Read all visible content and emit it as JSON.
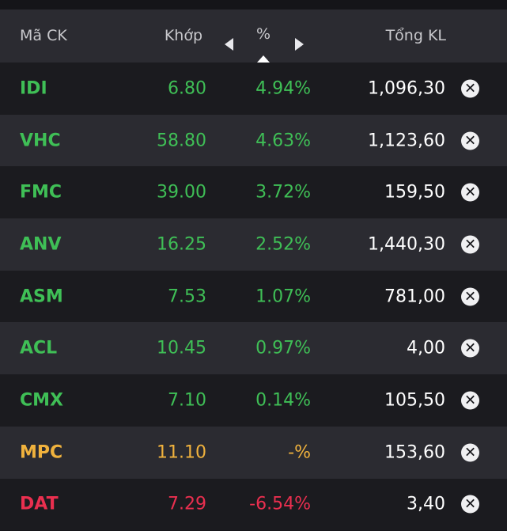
{
  "header": {
    "symbol": "Mã CK",
    "price": "Khớp",
    "percent": "%",
    "volume": "Tổng KL"
  },
  "colors": {
    "up": "#3fbf56",
    "reference": "#f0b23d",
    "down": "#ea2f4f"
  },
  "rows": [
    {
      "symbol": "IDI",
      "price": "6.80",
      "pct": "4.94%",
      "volume": "1,096,30",
      "status": "up"
    },
    {
      "symbol": "VHC",
      "price": "58.80",
      "pct": "4.63%",
      "volume": "1,123,60",
      "status": "up"
    },
    {
      "symbol": "FMC",
      "price": "39.00",
      "pct": "3.72%",
      "volume": "159,50",
      "status": "up"
    },
    {
      "symbol": "ANV",
      "price": "16.25",
      "pct": "2.52%",
      "volume": "1,440,30",
      "status": "up"
    },
    {
      "symbol": "ASM",
      "price": "7.53",
      "pct": "1.07%",
      "volume": "781,00",
      "status": "up"
    },
    {
      "symbol": "ACL",
      "price": "10.45",
      "pct": "0.97%",
      "volume": "4,00",
      "status": "up"
    },
    {
      "symbol": "CMX",
      "price": "7.10",
      "pct": "0.14%",
      "volume": "105,50",
      "status": "up"
    },
    {
      "symbol": "MPC",
      "price": "11.10",
      "pct": "-%",
      "volume": "153,60",
      "status": "ref"
    },
    {
      "symbol": "DAT",
      "price": "7.29",
      "pct": "-6.54%",
      "volume": "3,40",
      "status": "down"
    }
  ],
  "remove_icon": "close-circle-icon",
  "remove_glyph": "✕"
}
